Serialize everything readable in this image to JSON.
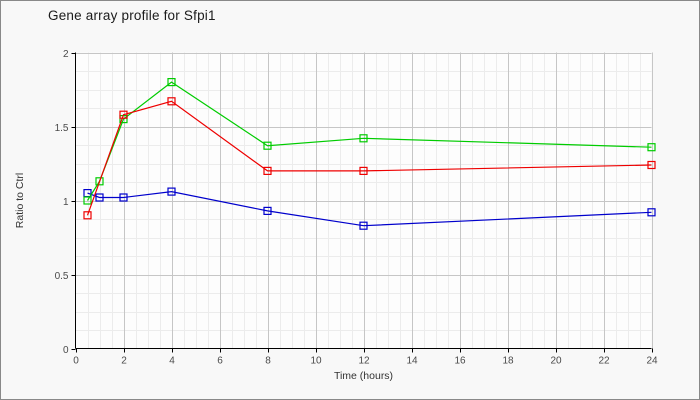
{
  "chart_data": {
    "type": "line",
    "title": "Gene array profile for Sfpi1",
    "xlabel": "Time (hours)",
    "ylabel": "Ratio to Ctrl",
    "xlim": [
      0,
      24
    ],
    "ylim": [
      0,
      2
    ],
    "x_ticks": [
      0,
      2,
      4,
      6,
      8,
      10,
      12,
      14,
      16,
      18,
      20,
      22,
      24
    ],
    "y_ticks": [
      0,
      0.5,
      1,
      1.5,
      2
    ],
    "grid": {
      "major": true,
      "minor": true,
      "x_minor_step": 0.5,
      "y_minor_step": 0.125
    },
    "legend_position": "none",
    "marker_style": "open-square",
    "series": [
      {
        "name": "blue-series",
        "color": "#0000cc",
        "points": [
          [
            0.5,
            1.05
          ],
          [
            1,
            1.02
          ],
          [
            2,
            1.02
          ],
          [
            4,
            1.06
          ],
          [
            8,
            0.93
          ],
          [
            12,
            0.83
          ],
          [
            24,
            0.92
          ]
        ]
      },
      {
        "name": "green-series",
        "color": "#00cc00",
        "points": [
          [
            0.5,
            1.0
          ],
          [
            1,
            1.13
          ],
          [
            2,
            1.55
          ],
          [
            4,
            1.8
          ],
          [
            8,
            1.37
          ],
          [
            12,
            1.42
          ],
          [
            24,
            1.36
          ]
        ]
      },
      {
        "name": "red-series",
        "color": "#ee0000",
        "points": [
          [
            0.5,
            0.9
          ],
          [
            2,
            1.58
          ],
          [
            4,
            1.67
          ],
          [
            8,
            1.2
          ],
          [
            12,
            1.2
          ],
          [
            24,
            1.24
          ]
        ]
      }
    ],
    "colors": {
      "plot_background": "#fdfdfd",
      "outer_background": "#f8f8f8",
      "major_grid": "#c6c6c6",
      "minor_grid": "#ececec",
      "axis": "#000000",
      "tick_label": "#4a4a4a",
      "axis_label": "#333333",
      "title": "#1b1b1b",
      "frame_border": "#898989"
    }
  }
}
